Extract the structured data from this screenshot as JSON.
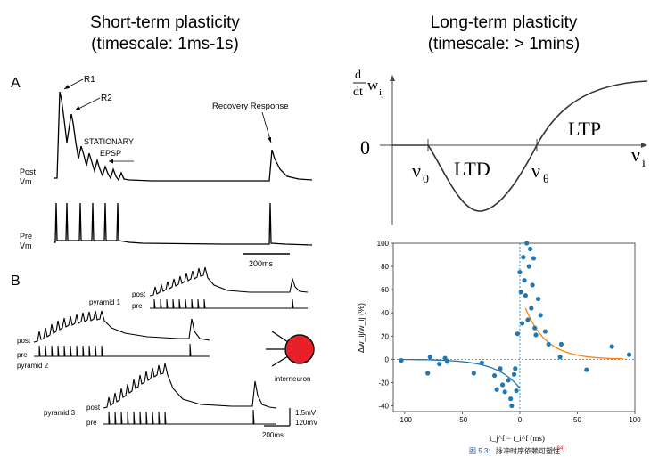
{
  "left_title": {
    "line1": "Short-term plasticity",
    "line2": "(timescale: 1ms-1s)"
  },
  "right_title": {
    "line1": "Long-term plasticity",
    "line2": "(timescale: > 1mins)"
  },
  "panel_a": {
    "label": "A",
    "annotations": {
      "r1": "R1",
      "r2": "R2",
      "stationary": "STATIONARY",
      "epsp": "EPSP",
      "recovery": "Recovery Response"
    },
    "post_label": {
      "l1": "Post",
      "l2": "Vm"
    },
    "pre_label": {
      "l1": "Pre",
      "l2": "Vm"
    },
    "scale": "200ms"
  },
  "panel_b": {
    "label": "B",
    "pyramid1": "pyramid 1",
    "pyramid2": "pyramid 2",
    "pyramid3": "pyramid 3",
    "post": "post",
    "pre": "pre",
    "interneuron": "interneuron",
    "scale_mv1": "1.5mV",
    "scale_mv2": "120mV",
    "scale_ms": "200ms",
    "neuron_color": "#e8202a"
  },
  "bcm": {
    "y_label_d": "d",
    "y_label_dt": "dt",
    "y_label_w": "w",
    "y_label_ij": "ij",
    "zero": "0",
    "nu0": "ν",
    "nu0_sub": "0",
    "ltd": "LTD",
    "nu_theta": "ν",
    "nu_theta_sub": "θ",
    "ltp": "LTP",
    "nu_i": "ν",
    "nu_i_sub": "i"
  },
  "stdp": {
    "y_label": "Δw_ij/w_ij (%)",
    "x_label": "t_j^f − t_i^f (ms)",
    "caption_prefix": "图 5.3:",
    "caption_text": "脉冲时序依赖可塑性",
    "caption_ref": "[34]",
    "point_color": "#1f77b4",
    "ltd_curve_color": "#1f77b4",
    "ltp_curve_color": "#ff7f0e"
  },
  "chart_data": {
    "type": "scatter",
    "xlabel": "t_j^f − t_i^f (ms)",
    "ylabel": "Δw_ij/w_ij (%)",
    "xlim": [
      -110,
      100
    ],
    "ylim": [
      -45,
      100
    ],
    "x_ticks": [
      -100,
      -50,
      0,
      50,
      100
    ],
    "y_ticks": [
      -40,
      -20,
      0,
      20,
      40,
      60,
      80,
      100
    ],
    "points": [
      [
        -103,
        -1
      ],
      [
        -80,
        -12
      ],
      [
        -78,
        2
      ],
      [
        -70,
        -4
      ],
      [
        -65,
        1
      ],
      [
        -63,
        -2
      ],
      [
        -40,
        -12
      ],
      [
        -33,
        -3
      ],
      [
        -22,
        -14
      ],
      [
        -20,
        -26
      ],
      [
        -17,
        -8
      ],
      [
        -15,
        -22
      ],
      [
        -13,
        -28
      ],
      [
        -10,
        -18
      ],
      [
        -8,
        -34
      ],
      [
        -7,
        -40
      ],
      [
        -5,
        -13
      ],
      [
        -4,
        -8
      ],
      [
        -3,
        -27
      ],
      [
        -2,
        22
      ],
      [
        0,
        75
      ],
      [
        1,
        58
      ],
      [
        2,
        31
      ],
      [
        3,
        88
      ],
      [
        4,
        68
      ],
      [
        5,
        55
      ],
      [
        6,
        100
      ],
      [
        7,
        34
      ],
      [
        8,
        80
      ],
      [
        9,
        95
      ],
      [
        10,
        44
      ],
      [
        11,
        64
      ],
      [
        12,
        87
      ],
      [
        13,
        27
      ],
      [
        14,
        21
      ],
      [
        16,
        52
      ],
      [
        18,
        38
      ],
      [
        22,
        24
      ],
      [
        25,
        13
      ],
      [
        35,
        2
      ],
      [
        36,
        13
      ],
      [
        58,
        -9
      ],
      [
        80,
        11
      ],
      [
        95,
        4
      ]
    ],
    "fit_ltd": {
      "A": -25,
      "tau": 20,
      "range": [
        -105,
        0
      ]
    },
    "fit_ltp": {
      "A": 58,
      "tau": 18,
      "range": [
        5,
        90
      ]
    }
  }
}
